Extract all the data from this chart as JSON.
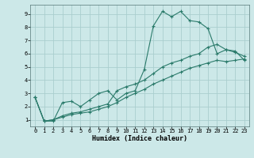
{
  "xlabel": "Humidex (Indice chaleur)",
  "ylabel": "",
  "background_color": "#cce8e8",
  "grid_color": "#aacece",
  "line_color": "#2a7a6a",
  "xlim": [
    -0.5,
    23.5
  ],
  "ylim": [
    0.5,
    9.7
  ],
  "xticks": [
    0,
    1,
    2,
    3,
    4,
    5,
    6,
    7,
    8,
    9,
    10,
    11,
    12,
    13,
    14,
    15,
    16,
    17,
    18,
    19,
    20,
    21,
    22,
    23
  ],
  "yticks": [
    1,
    2,
    3,
    4,
    5,
    6,
    7,
    8,
    9
  ],
  "line1_x": [
    0,
    1,
    2,
    3,
    4,
    5,
    6,
    7,
    8,
    9,
    10,
    11,
    12,
    13,
    14,
    15,
    16,
    17,
    18,
    19,
    20,
    21,
    22,
    23
  ],
  "line1_y": [
    2.7,
    0.9,
    0.9,
    2.3,
    2.4,
    2.0,
    2.5,
    3.0,
    3.2,
    2.5,
    3.0,
    3.2,
    4.8,
    8.1,
    9.2,
    8.8,
    9.2,
    8.5,
    8.4,
    7.9,
    6.0,
    6.3,
    6.1,
    5.8
  ],
  "line2_x": [
    0,
    1,
    2,
    3,
    4,
    5,
    6,
    7,
    8,
    9,
    10,
    11,
    12,
    13,
    14,
    15,
    16,
    17,
    18,
    19,
    20,
    21,
    22,
    23
  ],
  "line2_y": [
    2.7,
    0.9,
    1.0,
    1.3,
    1.5,
    1.6,
    1.8,
    2.0,
    2.2,
    3.2,
    3.5,
    3.7,
    4.0,
    4.5,
    5.0,
    5.3,
    5.5,
    5.8,
    6.0,
    6.5,
    6.7,
    6.3,
    6.2,
    5.5
  ],
  "line3_x": [
    0,
    1,
    2,
    3,
    4,
    5,
    6,
    7,
    8,
    9,
    10,
    11,
    12,
    13,
    14,
    15,
    16,
    17,
    18,
    19,
    20,
    21,
    22,
    23
  ],
  "line3_y": [
    2.7,
    0.9,
    1.0,
    1.2,
    1.4,
    1.5,
    1.6,
    1.8,
    2.0,
    2.3,
    2.7,
    3.0,
    3.3,
    3.7,
    4.0,
    4.3,
    4.6,
    4.9,
    5.1,
    5.3,
    5.5,
    5.4,
    5.5,
    5.6
  ],
  "tick_fontsize": 5.0,
  "xlabel_fontsize": 6.0
}
